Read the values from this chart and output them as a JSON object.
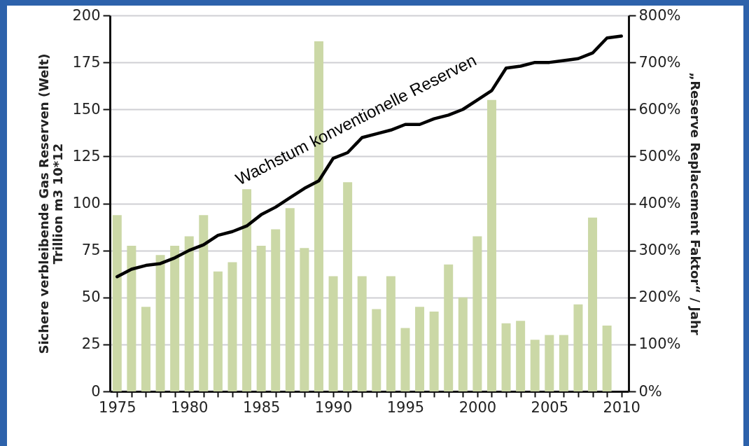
{
  "chart_data": {
    "type": "bar",
    "ylabel": "Sichere verbleibende Gas Reserven (Welt)\nTrillion m3  10*12",
    "y2label": "„Reserve Replacement Faktor“ / Jahr",
    "x": [
      1975,
      1976,
      1977,
      1978,
      1979,
      1980,
      1981,
      1982,
      1983,
      1984,
      1985,
      1986,
      1987,
      1988,
      1989,
      1990,
      1991,
      1992,
      1993,
      1994,
      1995,
      1996,
      1997,
      1998,
      1999,
      2000,
      2001,
      2002,
      2003,
      2004,
      2005,
      2006,
      2007,
      2008,
      2009,
      2010
    ],
    "series": [
      {
        "axis": "y2",
        "color": "#cbd8a6",
        "values": [
          375,
          310,
          180,
          290,
          310,
          330,
          375,
          255,
          275,
          430,
          310,
          345,
          390,
          305,
          745,
          245,
          445,
          245,
          175,
          245,
          135,
          180,
          170,
          270,
          200,
          330,
          620,
          145,
          150,
          110,
          120,
          120,
          185,
          370,
          140,
          null
        ]
      },
      {
        "type": "line",
        "color": "#000000",
        "values": [
          61,
          65,
          67,
          68,
          71,
          75,
          78,
          83,
          85,
          88,
          94,
          98,
          103,
          108,
          112,
          124,
          127,
          135,
          137,
          139,
          142,
          142,
          145,
          147,
          150,
          155,
          160,
          172,
          173,
          175,
          175,
          176,
          177,
          180,
          188,
          189
        ]
      }
    ],
    "xlim": [
      1974.5,
      2010.5
    ],
    "xticks": [
      1975,
      {
        "value": 1976,
        "label": null
      },
      {
        "value": 1977,
        "label": null
      },
      {
        "value": 1978,
        "label": null
      },
      {
        "value": 1979,
        "label": null
      },
      1980,
      {
        "value": 1981,
        "label": null
      },
      {
        "value": 1982,
        "label": null
      },
      {
        "value": 1983,
        "label": null
      },
      {
        "value": 1984,
        "label": null
      },
      1985,
      {
        "value": 1986,
        "label": null
      },
      {
        "value": 1987,
        "label": null
      },
      {
        "value": 1988,
        "label": null
      },
      {
        "value": 1989,
        "label": null
      },
      1990,
      {
        "value": 1991,
        "label": null
      },
      {
        "value": 1992,
        "label": null
      },
      {
        "value": 1993,
        "label": null
      },
      {
        "value": 1994,
        "label": null
      },
      1995,
      {
        "value": 1996,
        "label": null
      },
      {
        "value": 1997,
        "label": null
      },
      {
        "value": 1998,
        "label": null
      },
      {
        "value": 1999,
        "label": null
      },
      2000,
      {
        "value": 2001,
        "label": null
      },
      {
        "value": 2002,
        "label": null
      },
      {
        "value": 2003,
        "label": null
      },
      {
        "value": 2004,
        "label": null
      },
      2005,
      {
        "value": 2006,
        "label": null
      },
      {
        "value": 2007,
        "label": null
      },
      {
        "value": 2008,
        "label": null
      },
      {
        "value": 2009,
        "label": null
      },
      2010
    ],
    "ylim": [
      0,
      200
    ],
    "yticks": [
      0,
      25,
      50,
      75,
      100,
      125,
      150,
      175,
      200
    ],
    "y2lim": [
      0,
      800
    ],
    "y2ticks": [
      {
        "value": 0,
        "label": "0%"
      },
      {
        "value": 100,
        "label": "100%"
      },
      {
        "value": 200,
        "label": "200%"
      },
      {
        "value": 300,
        "label": "300%"
      },
      {
        "value": 400,
        "label": "400%"
      },
      {
        "value": 500,
        "label": "500%"
      },
      {
        "value": 600,
        "label": "600%"
      },
      {
        "value": 700,
        "label": "700%"
      },
      {
        "value": 800,
        "label": "800%"
      }
    ],
    "annotations": [
      "Wachstum konventionelle Reserven"
    ],
    "grid": "y",
    "marker": "none",
    "line_style": "solid"
  }
}
